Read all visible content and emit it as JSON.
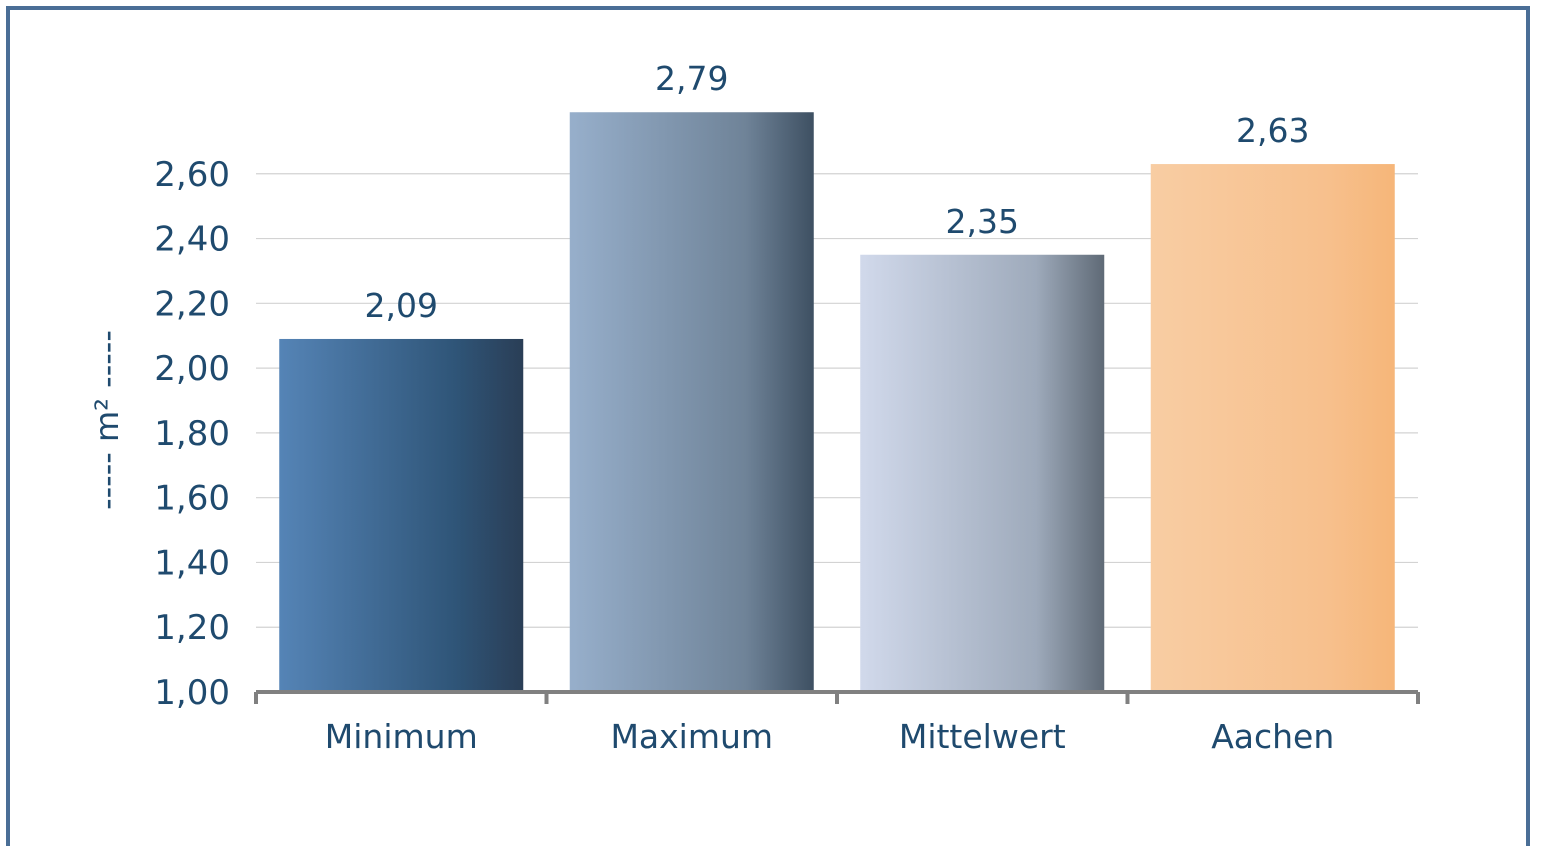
{
  "chart_data": {
    "type": "bar",
    "title": "",
    "xlabel": "",
    "ylabel": "----- m² -----",
    "categories": [
      "Minimum",
      "Maximum",
      "Mittelwert",
      "Aachen"
    ],
    "values": [
      2.09,
      2.79,
      2.35,
      2.63
    ],
    "value_labels": [
      "2,09",
      "2,79",
      "2,35",
      "2,63"
    ],
    "ylim": [
      1.0,
      2.8
    ],
    "yticks": [
      1.0,
      1.2,
      1.4,
      1.6,
      1.8,
      2.0,
      2.2,
      2.4,
      2.6
    ],
    "ytick_labels": [
      "1,00",
      "1,20",
      "1,40",
      "1,60",
      "1,80",
      "2,00",
      "2,20",
      "2,40",
      "2,60"
    ],
    "grid": true,
    "legend": "none",
    "bar_gradients": [
      [
        "#5584b6",
        "#2f5578",
        "#2a3e56"
      ],
      [
        "#97afcb",
        "#6f8398",
        "#3e5062"
      ],
      [
        "#d1d9eb",
        "#9eaabb",
        "#5f6a76"
      ],
      [
        "#f8cda3",
        "#f7c08d",
        "#f6b679"
      ]
    ],
    "colors": {
      "frame": "#4a6e96",
      "text": "#1f4a6e",
      "grid": "#d3d3d3",
      "axis": "#808080"
    }
  }
}
